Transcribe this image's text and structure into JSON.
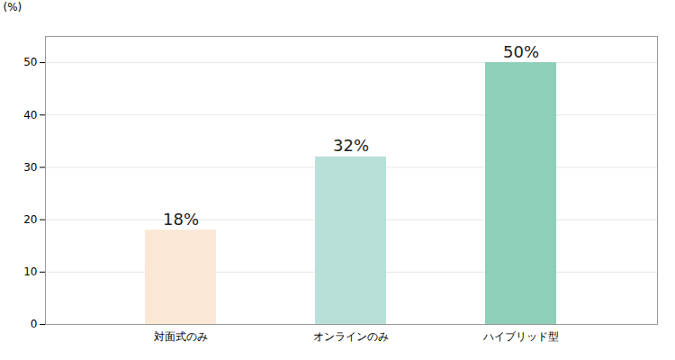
{
  "chart_data": {
    "type": "bar",
    "categories": [
      "対面式のみ",
      "オンラインのみ",
      "ハイブリッド型"
    ],
    "values": [
      18,
      32,
      50
    ],
    "value_labels": [
      "18%",
      "32%",
      "50%"
    ],
    "data_labels": true,
    "colors": [
      "#FAE8D4",
      "#B8E0D8",
      "#8DCFB8"
    ],
    "ylabel": "(%)",
    "ylim": [
      0,
      55
    ],
    "yticks": [
      0,
      10,
      20,
      30,
      40,
      50
    ],
    "grid": true
  }
}
